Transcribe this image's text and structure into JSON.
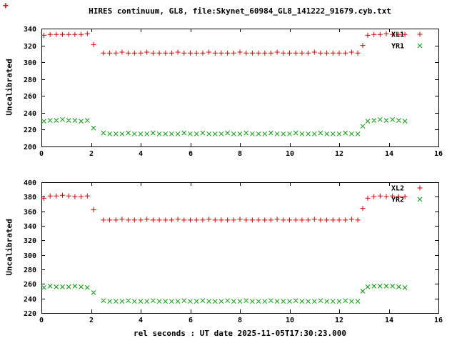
{
  "title": "HIRES continuum, GL8, file:Skynet_60984_GL8_141222_91679.cyb.txt",
  "xlabel": "rel seconds : UT date 2025-11-05T17:30:23.000",
  "colors": {
    "series_red": "#e00000",
    "series_green": "#00a000",
    "text": "#000000",
    "background": "#ffffff"
  },
  "stray_marker": {
    "symbol": "+",
    "color": "#e00000"
  },
  "chart_data": [
    {
      "type": "scatter",
      "title": "",
      "ylabel": "Uncalibrated",
      "xlabel": "",
      "xlim": [
        0,
        16
      ],
      "ylim": [
        200,
        340
      ],
      "xticks": [
        0,
        2,
        4,
        6,
        8,
        10,
        12,
        14,
        16
      ],
      "yticks": [
        200,
        220,
        240,
        260,
        280,
        300,
        320,
        340
      ],
      "grid": false,
      "legend_position": "top-right-inside",
      "series": [
        {
          "name": "XL1",
          "marker": "plus",
          "color": "#e00000",
          "points": [
            [
              0.1,
              332
            ],
            [
              0.35,
              333
            ],
            [
              0.6,
              333
            ],
            [
              0.85,
              333
            ],
            [
              1.1,
              333
            ],
            [
              1.35,
              333
            ],
            [
              1.6,
              333
            ],
            [
              1.85,
              334
            ],
            [
              2.1,
              321
            ],
            [
              2.5,
              311
            ],
            [
              2.75,
              311
            ],
            [
              3,
              311
            ],
            [
              3.25,
              312
            ],
            [
              3.5,
              311
            ],
            [
              3.75,
              311
            ],
            [
              4,
              311
            ],
            [
              4.25,
              312
            ],
            [
              4.5,
              311
            ],
            [
              4.75,
              311
            ],
            [
              5,
              311
            ],
            [
              5.25,
              311
            ],
            [
              5.5,
              312
            ],
            [
              5.75,
              311
            ],
            [
              6,
              311
            ],
            [
              6.25,
              311
            ],
            [
              6.5,
              311
            ],
            [
              6.75,
              312
            ],
            [
              7,
              311
            ],
            [
              7.25,
              311
            ],
            [
              7.5,
              311
            ],
            [
              7.75,
              311
            ],
            [
              8,
              312
            ],
            [
              8.25,
              311
            ],
            [
              8.5,
              311
            ],
            [
              8.75,
              311
            ],
            [
              9,
              311
            ],
            [
              9.25,
              311
            ],
            [
              9.5,
              312
            ],
            [
              9.75,
              311
            ],
            [
              10,
              311
            ],
            [
              10.25,
              311
            ],
            [
              10.5,
              311
            ],
            [
              10.75,
              311
            ],
            [
              11,
              312
            ],
            [
              11.25,
              311
            ],
            [
              11.5,
              311
            ],
            [
              11.75,
              311
            ],
            [
              12,
              311
            ],
            [
              12.25,
              311
            ],
            [
              12.5,
              312
            ],
            [
              12.75,
              311
            ],
            [
              12.95,
              320
            ],
            [
              13.15,
              332
            ],
            [
              13.4,
              333
            ],
            [
              13.65,
              333
            ],
            [
              13.9,
              334
            ],
            [
              14.15,
              333
            ],
            [
              14.4,
              333
            ],
            [
              14.65,
              333
            ]
          ]
        },
        {
          "name": "YR1",
          "marker": "cross",
          "color": "#00a000",
          "points": [
            [
              0.1,
              230
            ],
            [
              0.35,
              231
            ],
            [
              0.6,
              231
            ],
            [
              0.85,
              232
            ],
            [
              1.1,
              231
            ],
            [
              1.35,
              231
            ],
            [
              1.6,
              230
            ],
            [
              1.85,
              231
            ],
            [
              2.1,
              222
            ],
            [
              2.5,
              216
            ],
            [
              2.75,
              215
            ],
            [
              3,
              215
            ],
            [
              3.25,
              215
            ],
            [
              3.5,
              216
            ],
            [
              3.75,
              215
            ],
            [
              4,
              215
            ],
            [
              4.25,
              215
            ],
            [
              4.5,
              216
            ],
            [
              4.75,
              215
            ],
            [
              5,
              215
            ],
            [
              5.25,
              215
            ],
            [
              5.5,
              215
            ],
            [
              5.75,
              216
            ],
            [
              6,
              215
            ],
            [
              6.25,
              215
            ],
            [
              6.5,
              216
            ],
            [
              6.75,
              215
            ],
            [
              7,
              215
            ],
            [
              7.25,
              215
            ],
            [
              7.5,
              216
            ],
            [
              7.75,
              215
            ],
            [
              8,
              215
            ],
            [
              8.25,
              216
            ],
            [
              8.5,
              215
            ],
            [
              8.75,
              215
            ],
            [
              9,
              215
            ],
            [
              9.25,
              216
            ],
            [
              9.5,
              215
            ],
            [
              9.75,
              215
            ],
            [
              10,
              215
            ],
            [
              10.25,
              216
            ],
            [
              10.5,
              215
            ],
            [
              10.75,
              215
            ],
            [
              11,
              215
            ],
            [
              11.25,
              216
            ],
            [
              11.5,
              215
            ],
            [
              11.75,
              215
            ],
            [
              12,
              215
            ],
            [
              12.25,
              216
            ],
            [
              12.5,
              215
            ],
            [
              12.75,
              215
            ],
            [
              12.95,
              224
            ],
            [
              13.15,
              230
            ],
            [
              13.4,
              231
            ],
            [
              13.65,
              232
            ],
            [
              13.9,
              231
            ],
            [
              14.15,
              232
            ],
            [
              14.4,
              231
            ],
            [
              14.65,
              230
            ]
          ]
        }
      ]
    },
    {
      "type": "scatter",
      "title": "",
      "ylabel": "Uncalibrated",
      "xlabel": "",
      "xlim": [
        0,
        16
      ],
      "ylim": [
        220,
        400
      ],
      "xticks": [
        0,
        2,
        4,
        6,
        8,
        10,
        12,
        14,
        16
      ],
      "yticks": [
        220,
        240,
        260,
        280,
        300,
        320,
        340,
        360,
        380,
        400
      ],
      "grid": false,
      "legend_position": "top-right-inside",
      "series": [
        {
          "name": "XL2",
          "marker": "plus",
          "color": "#e00000",
          "points": [
            [
              0.1,
              378
            ],
            [
              0.35,
              381
            ],
            [
              0.6,
              381
            ],
            [
              0.85,
              382
            ],
            [
              1.1,
              381
            ],
            [
              1.35,
              380
            ],
            [
              1.6,
              380
            ],
            [
              1.85,
              381
            ],
            [
              2.1,
              362
            ],
            [
              2.5,
              348
            ],
            [
              2.75,
              348
            ],
            [
              3,
              348
            ],
            [
              3.25,
              349
            ],
            [
              3.5,
              348
            ],
            [
              3.75,
              348
            ],
            [
              4,
              348
            ],
            [
              4.25,
              349
            ],
            [
              4.5,
              348
            ],
            [
              4.75,
              348
            ],
            [
              5,
              348
            ],
            [
              5.25,
              348
            ],
            [
              5.5,
              349
            ],
            [
              5.75,
              348
            ],
            [
              6,
              348
            ],
            [
              6.25,
              348
            ],
            [
              6.5,
              348
            ],
            [
              6.75,
              349
            ],
            [
              7,
              348
            ],
            [
              7.25,
              348
            ],
            [
              7.5,
              348
            ],
            [
              7.75,
              348
            ],
            [
              8,
              349
            ],
            [
              8.25,
              348
            ],
            [
              8.5,
              348
            ],
            [
              8.75,
              348
            ],
            [
              9,
              348
            ],
            [
              9.25,
              348
            ],
            [
              9.5,
              349
            ],
            [
              9.75,
              348
            ],
            [
              10,
              348
            ],
            [
              10.25,
              348
            ],
            [
              10.5,
              348
            ],
            [
              10.75,
              348
            ],
            [
              11,
              349
            ],
            [
              11.25,
              348
            ],
            [
              11.5,
              348
            ],
            [
              11.75,
              348
            ],
            [
              12,
              348
            ],
            [
              12.25,
              348
            ],
            [
              12.5,
              349
            ],
            [
              12.75,
              348
            ],
            [
              12.95,
              364
            ],
            [
              13.15,
              378
            ],
            [
              13.4,
              380
            ],
            [
              13.65,
              381
            ],
            [
              13.9,
              380
            ],
            [
              14.15,
              381
            ],
            [
              14.4,
              380
            ],
            [
              14.65,
              380
            ]
          ]
        },
        {
          "name": "YR2",
          "marker": "cross",
          "color": "#00a000",
          "points": [
            [
              0.1,
              255
            ],
            [
              0.35,
              257
            ],
            [
              0.6,
              256
            ],
            [
              0.85,
              256
            ],
            [
              1.1,
              256
            ],
            [
              1.35,
              257
            ],
            [
              1.6,
              256
            ],
            [
              1.85,
              255
            ],
            [
              2.1,
              248
            ],
            [
              2.5,
              237
            ],
            [
              2.75,
              236
            ],
            [
              3,
              236
            ],
            [
              3.25,
              236
            ],
            [
              3.5,
              237
            ],
            [
              3.75,
              236
            ],
            [
              4,
              236
            ],
            [
              4.25,
              236
            ],
            [
              4.5,
              237
            ],
            [
              4.75,
              236
            ],
            [
              5,
              236
            ],
            [
              5.25,
              236
            ],
            [
              5.5,
              236
            ],
            [
              5.75,
              237
            ],
            [
              6,
              236
            ],
            [
              6.25,
              236
            ],
            [
              6.5,
              237
            ],
            [
              6.75,
              236
            ],
            [
              7,
              236
            ],
            [
              7.25,
              236
            ],
            [
              7.5,
              237
            ],
            [
              7.75,
              236
            ],
            [
              8,
              236
            ],
            [
              8.25,
              237
            ],
            [
              8.5,
              236
            ],
            [
              8.75,
              236
            ],
            [
              9,
              236
            ],
            [
              9.25,
              237
            ],
            [
              9.5,
              236
            ],
            [
              9.75,
              236
            ],
            [
              10,
              236
            ],
            [
              10.25,
              237
            ],
            [
              10.5,
              236
            ],
            [
              10.75,
              236
            ],
            [
              11,
              236
            ],
            [
              11.25,
              237
            ],
            [
              11.5,
              236
            ],
            [
              11.75,
              236
            ],
            [
              12,
              236
            ],
            [
              12.25,
              237
            ],
            [
              12.5,
              236
            ],
            [
              12.75,
              236
            ],
            [
              12.95,
              250
            ],
            [
              13.15,
              256
            ],
            [
              13.4,
              257
            ],
            [
              13.65,
              257
            ],
            [
              13.9,
              257
            ],
            [
              14.15,
              257
            ],
            [
              14.4,
              256
            ],
            [
              14.65,
              255
            ]
          ]
        }
      ]
    }
  ]
}
